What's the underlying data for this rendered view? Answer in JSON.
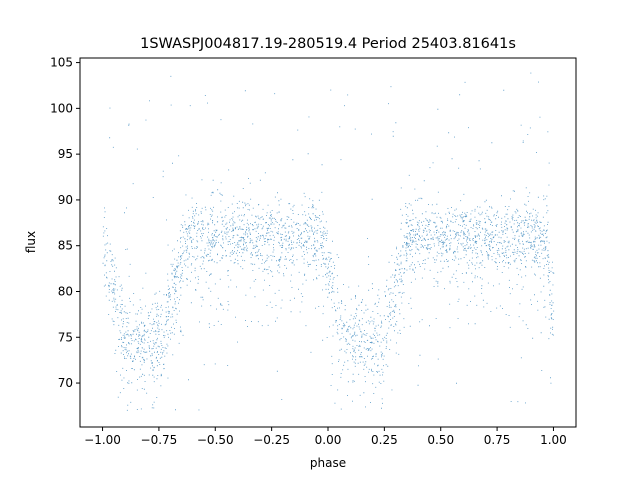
{
  "chart_data": {
    "type": "scatter",
    "title": "1SWASPJ004817.19-280519.4 Period 25403.81641s",
    "xlabel": "phase",
    "ylabel": "flux",
    "xlim": [
      -1.1,
      1.1
    ],
    "ylim": [
      65.2,
      105.5
    ],
    "x_ticks": [
      -1.0,
      -0.75,
      -0.5,
      -0.25,
      0.0,
      0.25,
      0.5,
      0.75,
      1.0
    ],
    "x_tick_labels": [
      "−1.00",
      "−0.75",
      "−0.50",
      "−0.25",
      "0.00",
      "0.25",
      "0.50",
      "0.75",
      "1.00"
    ],
    "y_ticks": [
      70,
      75,
      80,
      85,
      90,
      95,
      100,
      105
    ],
    "y_tick_labels": [
      "70",
      "75",
      "80",
      "85",
      "90",
      "95",
      "100",
      "105"
    ],
    "grid": false,
    "legend": "none",
    "color": "#1f77b4",
    "series": [
      {
        "phase_range": [
          -1.0,
          1.0
        ],
        "out_of_eclipse_flux": 86,
        "out_of_eclipse_spread": 2.5,
        "eclipses": [
          {
            "phase_start": -1.0,
            "phase_min": -0.83,
            "phase_end": -0.63,
            "flux_min": 75
          },
          {
            "phase_start": -0.03,
            "phase_min": 0.15,
            "phase_end": 0.35,
            "flux_min": 75
          },
          {
            "phase_start": 0.97,
            "phase_min": 1.0,
            "phase_end": 1.0,
            "flux_min": 79
          }
        ],
        "scatter_flux_range": [
          67,
          104
        ]
      }
    ]
  }
}
